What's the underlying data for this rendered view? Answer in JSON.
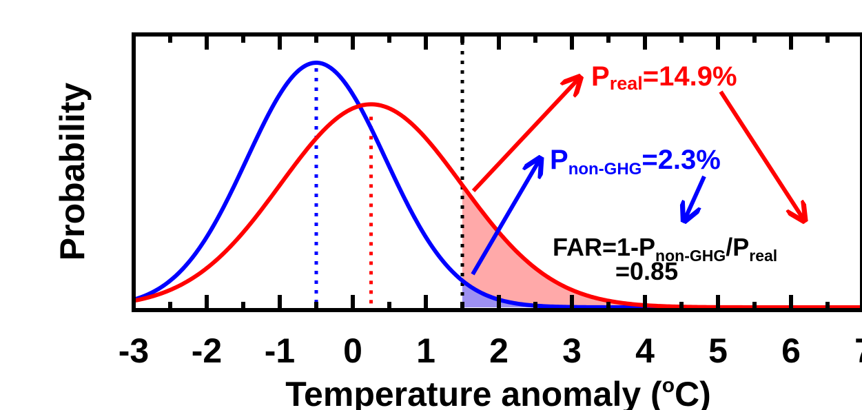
{
  "chart_data": {
    "type": "line",
    "xlabel_prefix": "Temperature anomaly (",
    "xlabel_degree": "o",
    "xlabel_unit": "C)",
    "ylabel": "Probability",
    "xlim": [
      -3,
      7
    ],
    "x_ticks": [
      "-3",
      "-2",
      "-1",
      "0",
      "1",
      "2",
      "3",
      "4",
      "5",
      "6",
      "7"
    ],
    "threshold": 1.5,
    "series": [
      {
        "key": "non-GHG",
        "color": "#0000ff",
        "distribution": "normal",
        "mean": -0.5,
        "sd": 0.95,
        "peak": 1.0
      },
      {
        "key": "real",
        "color": "#ff0000",
        "distribution": "normal",
        "mean": 0.25,
        "sd": 1.24,
        "peak": 0.83
      }
    ],
    "annotations": {
      "p_real": {
        "prefix": "P",
        "sub": "real",
        "suffix": "=14.9%",
        "color": "#ff0000"
      },
      "p_nonghg": {
        "prefix": "P",
        "sub": "non-GHG",
        "suffix": "=2.3%",
        "color": "#0000ff"
      },
      "far_line1": {
        "prefix": "FAR=1-P",
        "sub1": "non-GHG",
        "mid": "/P",
        "sub2": "real",
        "color": "#000000"
      },
      "far_line2": {
        "text": "=0.85",
        "color": "#000000"
      }
    }
  }
}
